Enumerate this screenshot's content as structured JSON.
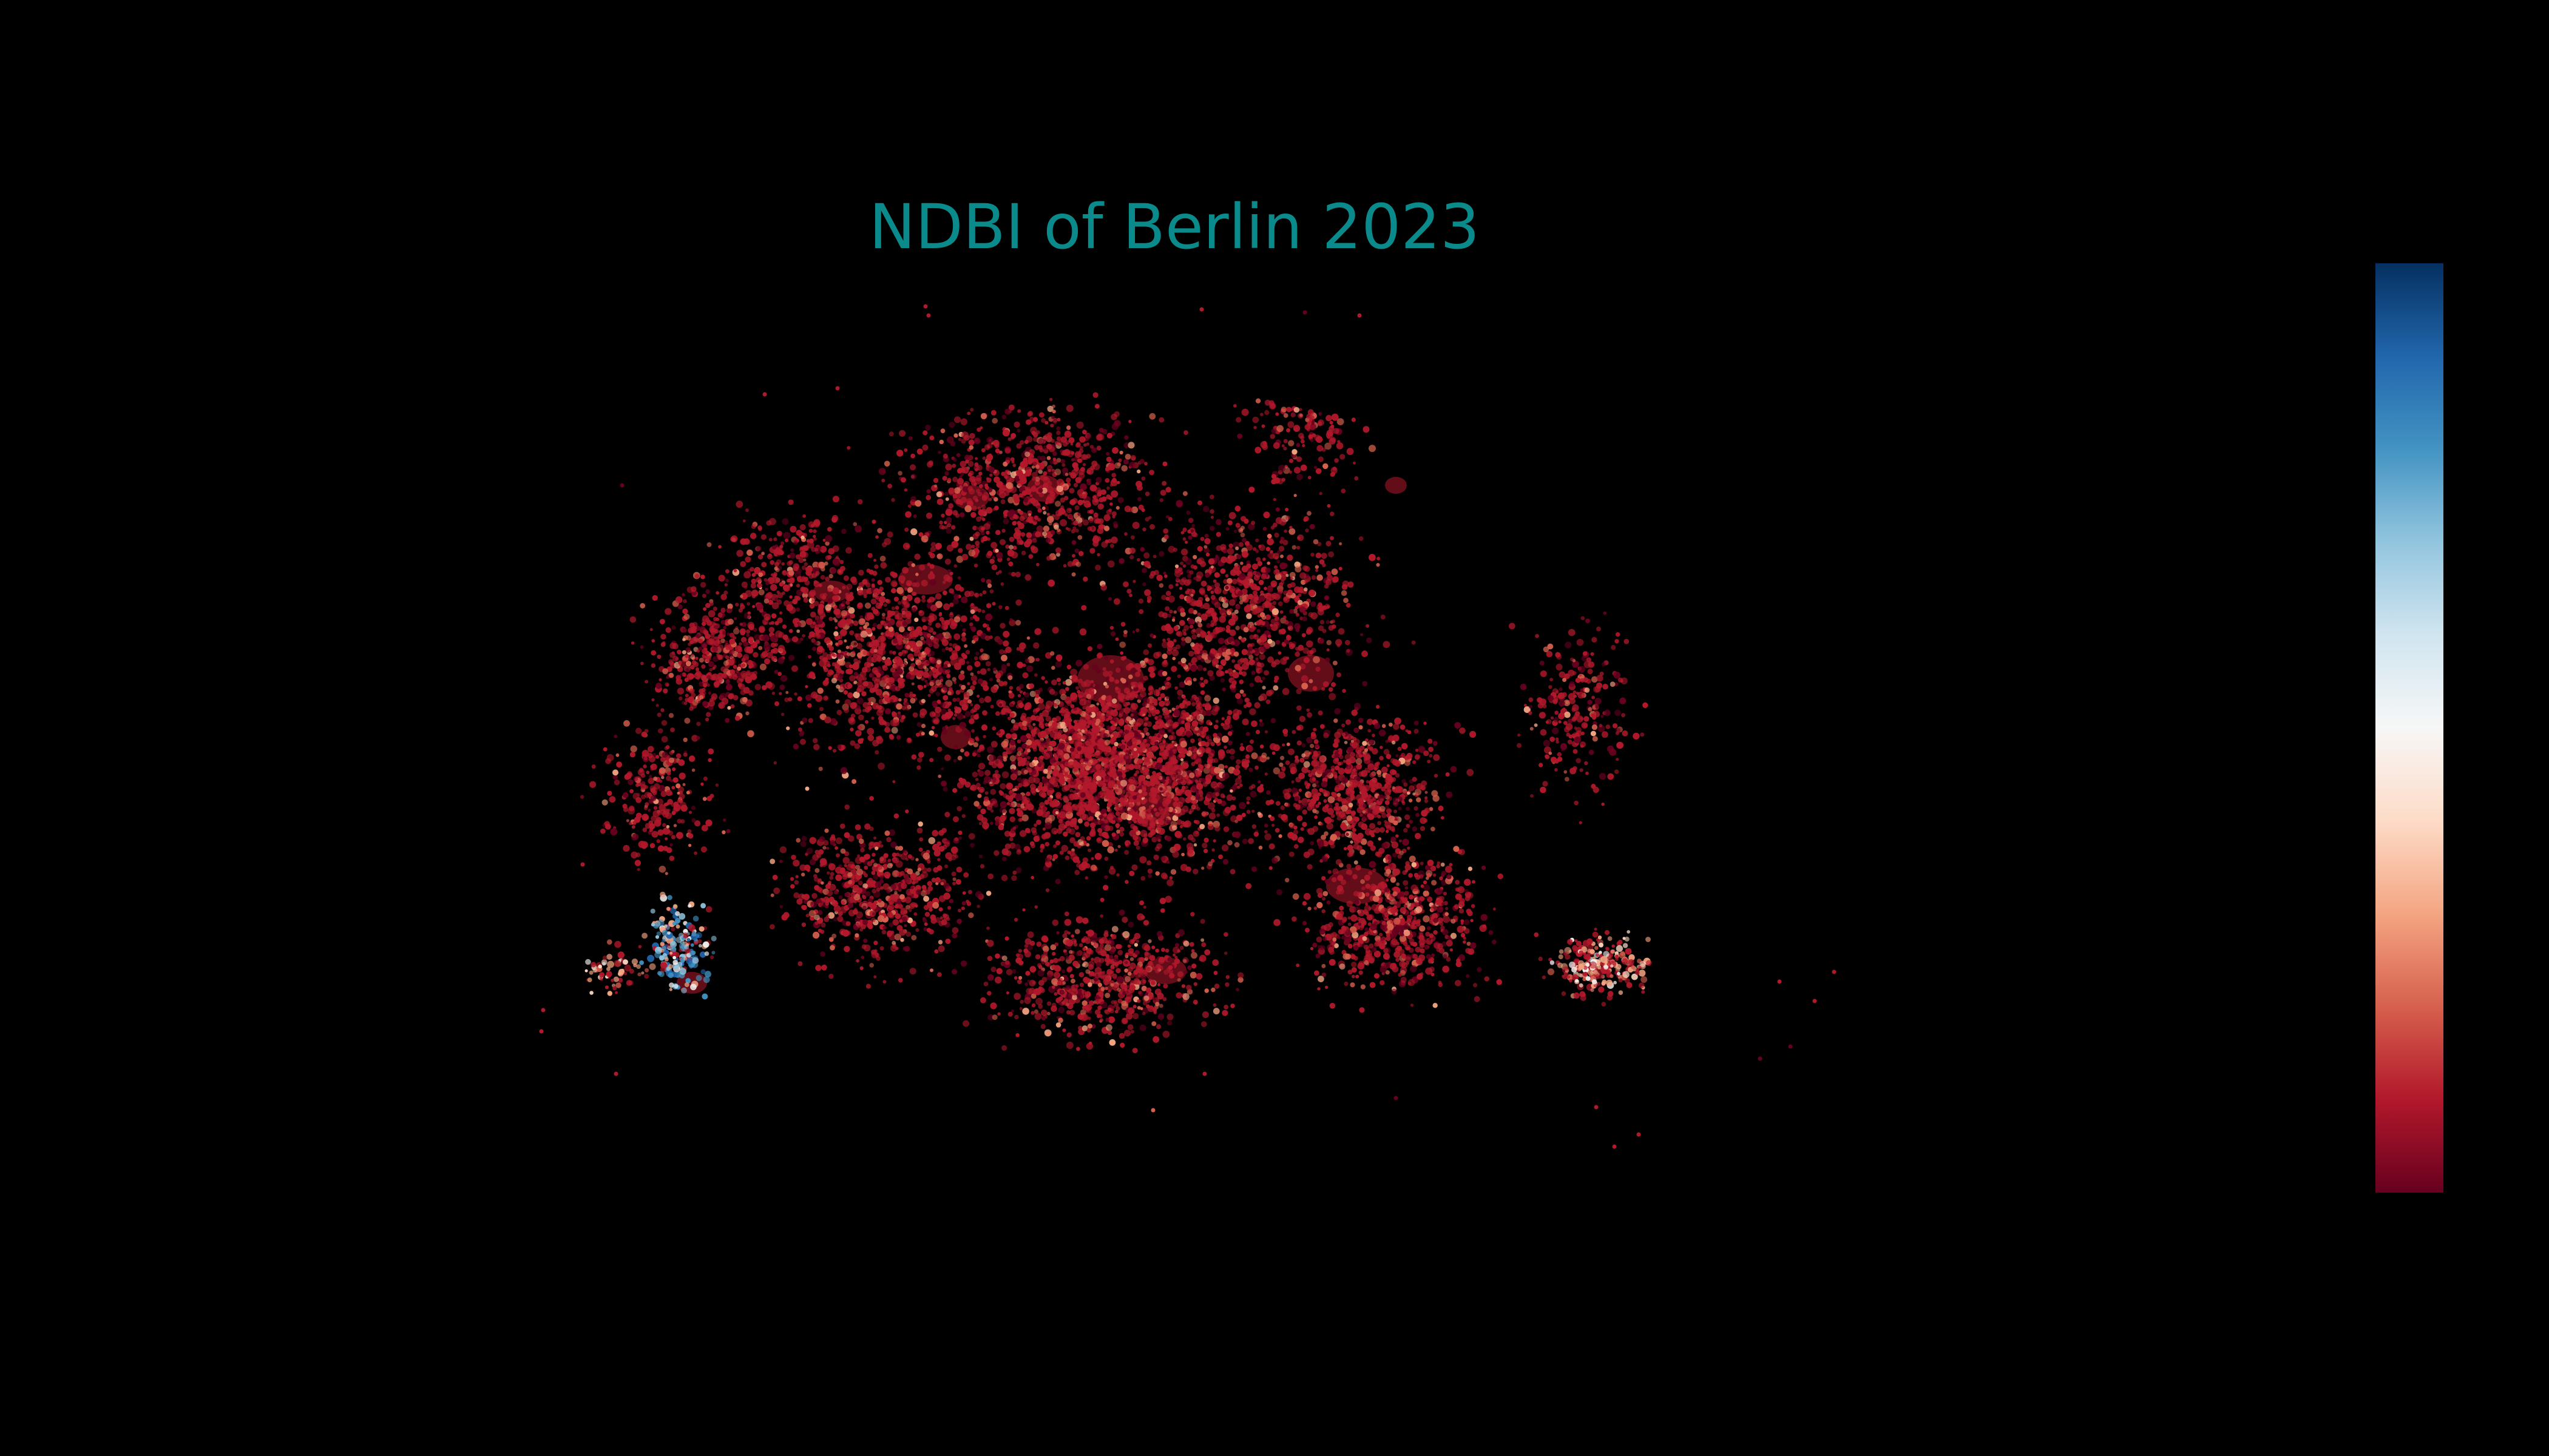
{
  "title": "NDBI of Berlin 2023",
  "colormap": {
    "name": "RdBu",
    "stops": [
      "#67001f",
      "#b2182b",
      "#d6604d",
      "#f4a582",
      "#fddbc7",
      "#f7f7f7",
      "#d1e5f0",
      "#92c5de",
      "#4393c3",
      "#2166ac",
      "#053061"
    ]
  },
  "background_color": "#000000",
  "title_color": "#0b8a8c",
  "dominant_point_color": "#b2182b",
  "legend": {
    "type": "colorbar",
    "placement": "right",
    "tick_labels": []
  },
  "chart_data": {
    "type": "scatter",
    "subject": "NDBI values sampled over Berlin building footprints",
    "point_density": "very high in city centre, sparse at edges",
    "dominant_value_band": "low end of colormap (dark red)",
    "high_value_clusters": [
      "south-west (Spandau/Gatow area)",
      "east (Marzahn/Hellersdorf area)"
    ],
    "axis_ticks_visible": false,
    "grid": false
  }
}
